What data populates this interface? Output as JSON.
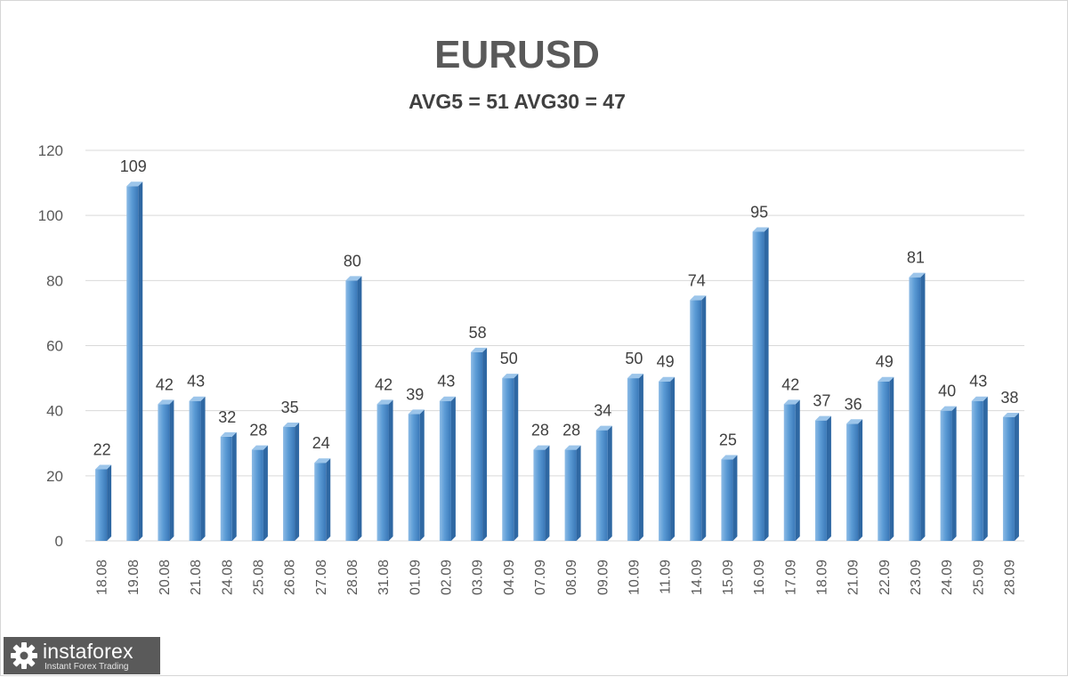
{
  "chart_data": {
    "type": "bar",
    "title": "EURUSD",
    "subtitle": "AVG5 = 51 AVG30 = 47",
    "categories": [
      "18.08",
      "19.08",
      "20.08",
      "21.08",
      "24.08",
      "25.08",
      "26.08",
      "27.08",
      "28.08",
      "31.08",
      "01.09",
      "02.09",
      "03.09",
      "04.09",
      "07.09",
      "08.09",
      "09.09",
      "10.09",
      "11.09",
      "14.09",
      "15.09",
      "16.09",
      "17.09",
      "18.09",
      "21.09",
      "22.09",
      "23.09",
      "24.09",
      "25.09",
      "28.09"
    ],
    "values": [
      22,
      109,
      42,
      43,
      32,
      28,
      35,
      24,
      80,
      42,
      39,
      43,
      58,
      50,
      28,
      28,
      34,
      50,
      49,
      74,
      25,
      95,
      42,
      37,
      36,
      49,
      81,
      40,
      43,
      38
    ],
    "ylim": [
      0,
      120
    ],
    "yticks": [
      0,
      20,
      40,
      60,
      80,
      100,
      120
    ],
    "xlabel": "",
    "ylabel": "",
    "grid": true,
    "bar_color": "#5b9bd5"
  },
  "watermark": {
    "name": "instaforex",
    "tagline": "Instant Forex Trading",
    "icon": "gear-icon"
  }
}
